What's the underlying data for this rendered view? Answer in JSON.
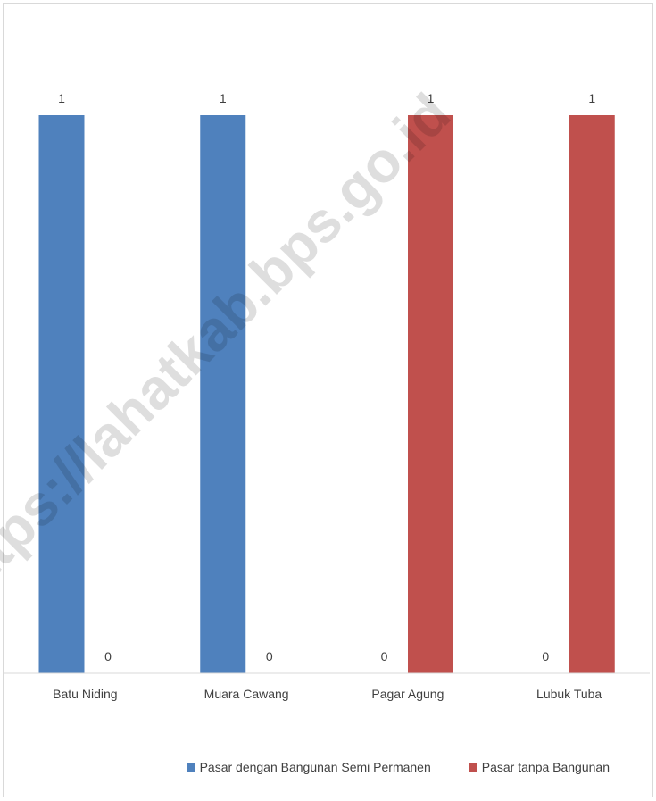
{
  "chart_data": {
    "type": "bar",
    "categories": [
      "Batu Niding",
      "Muara Cawang",
      "Pagar Agung",
      "Lubuk Tuba"
    ],
    "series": [
      {
        "name": "Pasar dengan Bangunan Semi Permanen",
        "values": [
          1,
          1,
          0,
          0
        ],
        "color": "#4f81bd"
      },
      {
        "name": "Pasar tanpa Bangunan",
        "values": [
          0,
          0,
          1,
          1
        ],
        "color": "#c0504d"
      }
    ],
    "ylim": [
      0,
      1
    ],
    "grid": false,
    "legend": "bottom",
    "watermark": "https://lahatkab.bps.go.id"
  }
}
